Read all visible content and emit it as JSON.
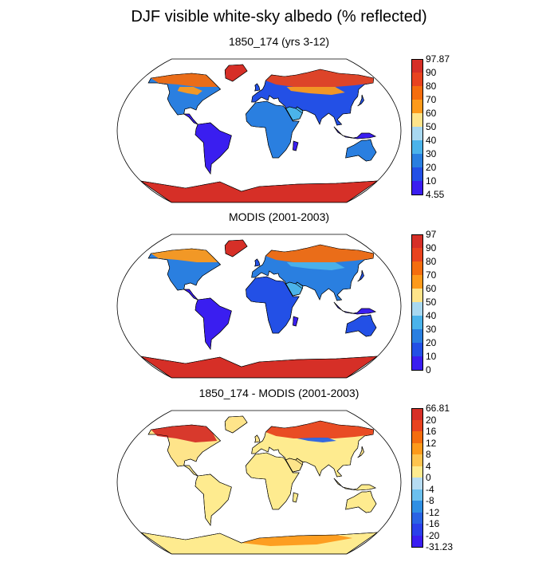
{
  "title": "DJF visible white-sky albedo (% reflected)",
  "colors": {
    "outline": "#000000",
    "ocean": "#ffffff"
  },
  "panels": [
    {
      "id": "model",
      "title": "1850_174 (yrs 3-12)",
      "colorbar": {
        "labels": [
          "97.87",
          "90",
          "80",
          "70",
          "60",
          "50",
          "40",
          "30",
          "20",
          "10",
          "4.55"
        ],
        "colors": [
          "#d62f27",
          "#e8431f",
          "#f46d0e",
          "#fd9a1b",
          "#fee48a",
          "#a8d8f0",
          "#4bb3ea",
          "#2a7fe0",
          "#2350e6",
          "#3a1ef0"
        ]
      }
    },
    {
      "id": "obs",
      "title": "MODIS (2001-2003)",
      "colorbar": {
        "labels": [
          "97",
          "90",
          "80",
          "70",
          "60",
          "50",
          "40",
          "30",
          "20",
          "10",
          "0"
        ],
        "colors": [
          "#d62f27",
          "#e8431f",
          "#f46d0e",
          "#fd9a1b",
          "#fee48a",
          "#a8d8f0",
          "#4bb3ea",
          "#2a7fe0",
          "#2350e6",
          "#3a1ef0"
        ]
      }
    },
    {
      "id": "diff",
      "title": "1850_174 - MODIS (2001-2003)",
      "colorbar": {
        "labels": [
          "66.81",
          "20",
          "16",
          "12",
          "8",
          "4",
          "0",
          "-4",
          "-8",
          "-12",
          "-16",
          "-20",
          "-31.23"
        ],
        "colors": [
          "#d62f27",
          "#e8431f",
          "#f46d0e",
          "#fd9a1b",
          "#fec44f",
          "#feeb8f",
          "#b6dcf2",
          "#6cc0ee",
          "#2f8fe3",
          "#2a63e4",
          "#2b40ea",
          "#3a1ef0"
        ]
      }
    }
  ]
}
